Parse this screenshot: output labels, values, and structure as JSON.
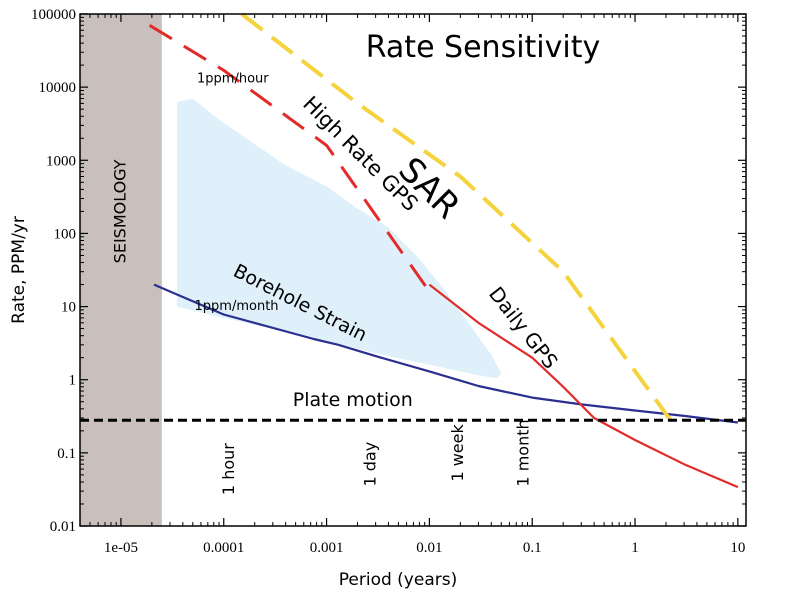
{
  "chart_data": {
    "type": "line",
    "title": "Rate Sensitivity",
    "xlabel": "Period (years)",
    "ylabel": "Rate, PPM/yr",
    "xscale": "log",
    "yscale": "log",
    "xlim": [
      4e-06,
      12
    ],
    "ylim": [
      0.01,
      100000
    ],
    "x_ticks": [
      {
        "value": 1e-05,
        "label": "1e-05"
      },
      {
        "value": 0.0001,
        "label": "0.0001"
      },
      {
        "value": 0.001,
        "label": "0.001"
      },
      {
        "value": 0.01,
        "label": "0.01"
      },
      {
        "value": 0.1,
        "label": "0.1"
      },
      {
        "value": 1,
        "label": "1"
      },
      {
        "value": 10,
        "label": "10"
      }
    ],
    "y_ticks": [
      {
        "value": 0.01,
        "label": "0.01"
      },
      {
        "value": 0.1,
        "label": "0.1"
      },
      {
        "value": 1,
        "label": "1"
      },
      {
        "value": 10,
        "label": "10"
      },
      {
        "value": 100,
        "label": "100"
      },
      {
        "value": 1000,
        "label": "1000"
      },
      {
        "value": 10000,
        "label": "10000"
      },
      {
        "value": 100000,
        "label": "100000"
      }
    ],
    "regions": [
      {
        "name": "SEISMOLOGY",
        "x_range": [
          4e-06,
          2.5e-05
        ],
        "color": "#c9bfbb"
      }
    ],
    "areas": [
      {
        "name": "borehole-strain-envelope",
        "color": "#dff0fa",
        "points": [
          [
            3.5e-05,
            6200
          ],
          [
            5e-05,
            7000
          ],
          [
            9e-05,
            3600
          ],
          [
            0.0004,
            850
          ],
          [
            0.001,
            440
          ],
          [
            0.002,
            220
          ],
          [
            0.004,
            120
          ],
          [
            0.008,
            45
          ],
          [
            0.015,
            15
          ],
          [
            0.04,
            2.2
          ],
          [
            0.05,
            1.2
          ],
          [
            0.045,
            1.05
          ],
          [
            0.03,
            1.15
          ],
          [
            0.01,
            1.6
          ],
          [
            0.003,
            2.3
          ],
          [
            0.001,
            3.4
          ],
          [
            0.0004,
            4.5
          ],
          [
            0.0001,
            7
          ],
          [
            3.5e-05,
            10
          ]
        ]
      }
    ],
    "series": [
      {
        "name": "Borehole Strain",
        "color": "#2b2f8f",
        "style": "solid",
        "points": [
          [
            2.1e-05,
            20
          ],
          [
            0.0001,
            7.8
          ],
          [
            0.00075,
            3.6
          ],
          [
            0.0013,
            3
          ],
          [
            0.003,
            2.1
          ],
          [
            0.01,
            1.3
          ],
          [
            0.03,
            0.82
          ],
          [
            0.1,
            0.57
          ],
          [
            0.3,
            0.46
          ],
          [
            1,
            0.38
          ],
          [
            3,
            0.32
          ],
          [
            10,
            0.26
          ]
        ]
      },
      {
        "name": "High Rate GPS",
        "color": "#e22b2b",
        "style": "dashed",
        "points": [
          [
            1.9e-05,
            70000
          ],
          [
            0.0001,
            17000
          ],
          [
            0.001,
            1600
          ],
          [
            0.01,
            16
          ]
        ]
      },
      {
        "name": "Daily GPS",
        "color": "#e22b2b",
        "style": "solid",
        "points": [
          [
            0.01,
            20
          ],
          [
            0.03,
            6
          ],
          [
            0.1,
            2
          ],
          [
            0.2,
            0.8
          ],
          [
            0.4,
            0.3
          ],
          [
            1,
            0.15
          ],
          [
            3,
            0.07
          ],
          [
            10,
            0.034
          ]
        ]
      },
      {
        "name": "SAR",
        "color": "#f4d33f",
        "style": "dashed",
        "points": [
          [
            0.00015,
            100000
          ],
          [
            0.002,
            6000
          ],
          [
            0.02,
            600
          ],
          [
            0.2,
            30
          ],
          [
            2.5,
            0.22
          ]
        ]
      },
      {
        "name": "Plate motion",
        "color": "#000000",
        "style": "dashed",
        "points": [
          [
            4e-06,
            0.28
          ],
          [
            12,
            0.28
          ]
        ]
      }
    ],
    "annotations": [
      {
        "text": "1ppm/hour",
        "x": 5.5e-05,
        "y": 13000
      },
      {
        "text": "1ppm/month",
        "x": 5.2e-05,
        "y": 10
      },
      {
        "text": "SEISMOLOGY",
        "x": 1e-05,
        "y": 200
      },
      {
        "text": "Borehole Strain",
        "x": 0.00055,
        "y": 11
      },
      {
        "text": "High Rate GPS",
        "x": 0.0021,
        "y": 1200
      },
      {
        "text": "SAR",
        "x": 0.0097,
        "y": 400
      },
      {
        "text": "Daily GPS",
        "x": 0.08,
        "y": 5
      },
      {
        "text": "Plate motion",
        "x": 0.0018,
        "y": 0.52
      },
      {
        "text": "1 hour",
        "x": 0.000114,
        "y": 0.06
      },
      {
        "text": "1 day",
        "x": 0.0027,
        "y": 0.07
      },
      {
        "text": "1 week",
        "x": 0.0192,
        "y": 0.1
      },
      {
        "text": "1 month",
        "x": 0.0833,
        "y": 0.1
      }
    ]
  }
}
